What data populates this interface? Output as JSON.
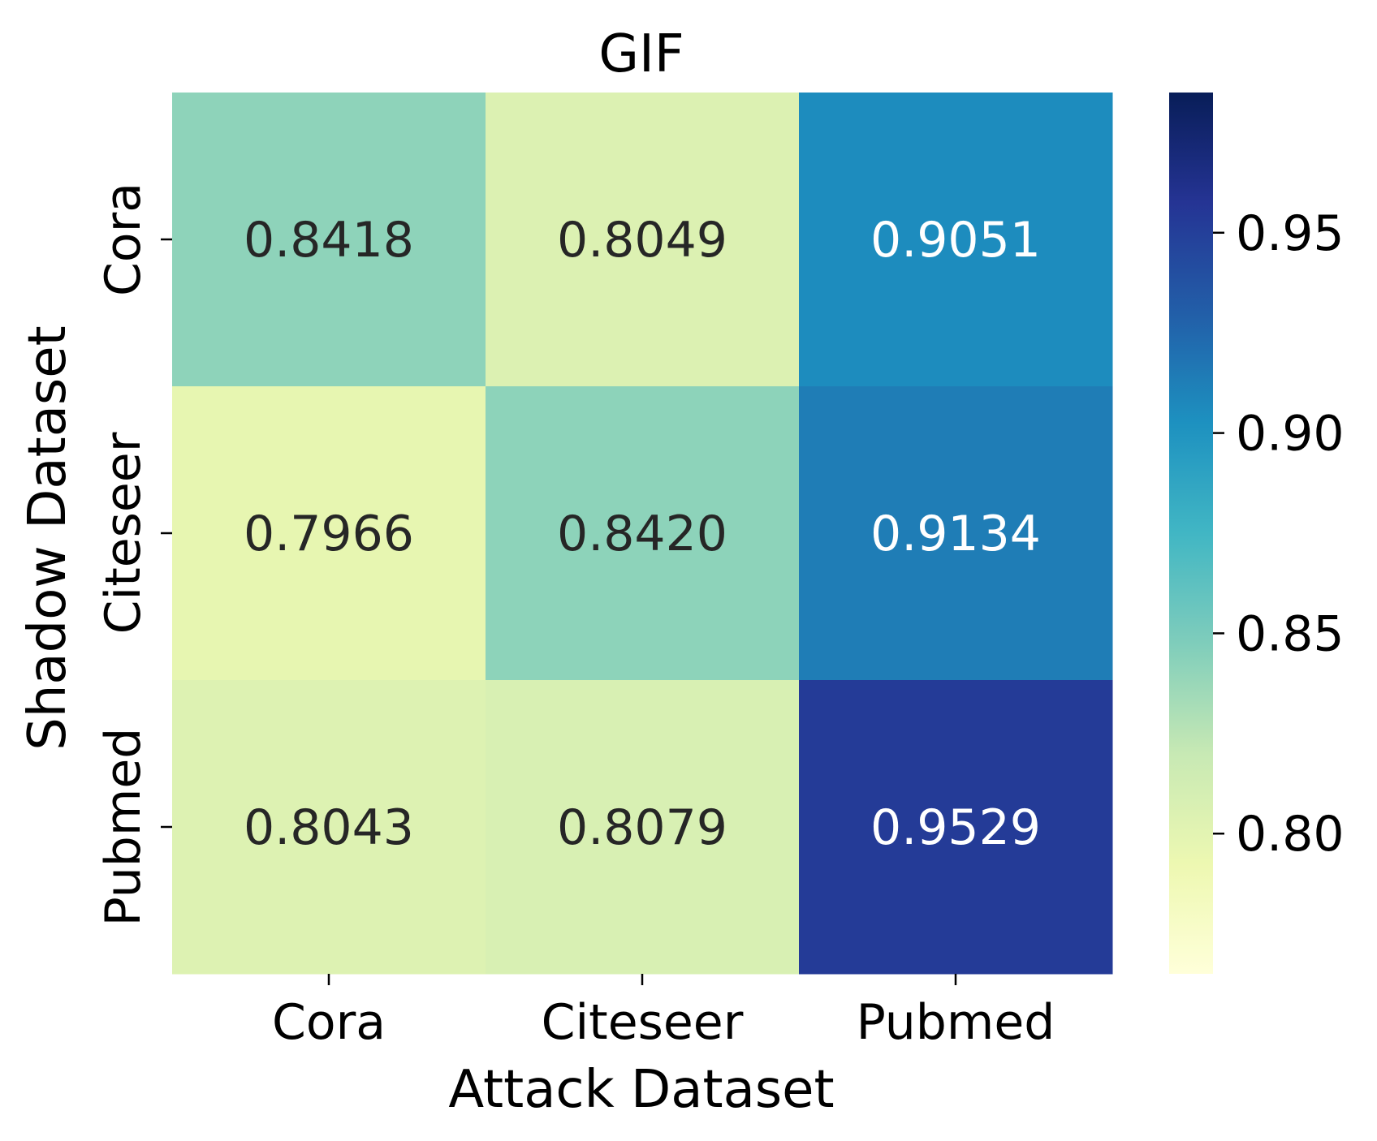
{
  "chart_data": {
    "type": "heatmap",
    "title": "GIF",
    "xlabel": "Attack Dataset",
    "ylabel": "Shadow Dataset",
    "x_categories": [
      "Cora",
      "Citeseer",
      "Pubmed"
    ],
    "y_categories": [
      "Cora",
      "Citeseer",
      "Pubmed"
    ],
    "values": [
      [
        0.8418,
        0.8049,
        0.9051
      ],
      [
        0.7966,
        0.842,
        0.9134
      ],
      [
        0.8043,
        0.8079,
        0.9529
      ]
    ],
    "value_labels": [
      [
        "0.8418",
        "0.8049",
        "0.9051"
      ],
      [
        "0.7966",
        "0.8420",
        "0.9134"
      ],
      [
        "0.8043",
        "0.8079",
        "0.9529"
      ]
    ],
    "colormap": "YlGnBu",
    "colorbar": {
      "vmin": 0.765,
      "vmax": 0.985,
      "ticks": [
        0.8,
        0.85,
        0.9,
        0.95
      ],
      "tick_labels": [
        "0.80",
        "0.85",
        "0.90",
        "0.95"
      ]
    },
    "cmap_stops": [
      "#ffffd9",
      "#edf8b1",
      "#c7e9b4",
      "#7fcdbb",
      "#41b6c4",
      "#1d91c0",
      "#225ea8",
      "#253494",
      "#081d58"
    ],
    "dark_text_color": "#262626",
    "light_text_color": "#ffffff",
    "text_threshold": 0.875
  }
}
